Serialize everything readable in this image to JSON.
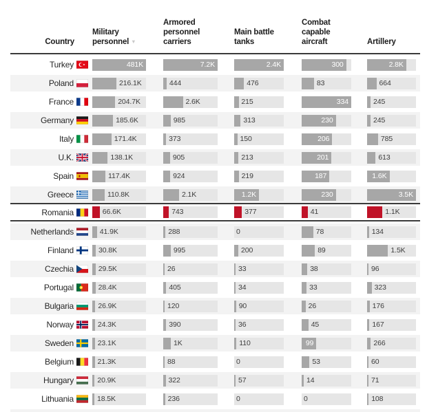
{
  "header": {
    "country_label": "Country",
    "sort_indicator": "▼",
    "columns": [
      {
        "label": "Military\npersonnel",
        "sorted": "desc"
      },
      {
        "label": "Armored\npersonnel\ncarriers"
      },
      {
        "label": "Main battle\ntanks"
      },
      {
        "label": "Combat\ncapable\naircraft"
      },
      {
        "label": "Artillery"
      }
    ]
  },
  "colors": {
    "bar_gray": "#a7a7a7",
    "highlight_red": "#c01328",
    "track": "#e6e6e6",
    "row_stripe": "#f3f3f3",
    "rule": "#3a3a3a"
  },
  "chart_data": {
    "type": "table",
    "title": "",
    "columns": [
      "Military personnel",
      "Armored personnel carriers",
      "Main battle tanks",
      "Combat capable aircraft",
      "Artillery"
    ],
    "column_max": [
      481000,
      7200,
      2400,
      334,
      3500
    ],
    "rows": [
      {
        "country": "Turkey",
        "flag": "tr",
        "highlight": false,
        "values": [
          481000,
          7200,
          2400,
          300,
          2800
        ],
        "labels": [
          "481K",
          "7.2K",
          "2.4K",
          "300",
          "2.8K"
        ]
      },
      {
        "country": "Poland",
        "flag": "pl",
        "highlight": false,
        "values": [
          216100,
          444,
          476,
          83,
          664
        ],
        "labels": [
          "216.1K",
          "444",
          "476",
          "83",
          "664"
        ]
      },
      {
        "country": "France",
        "flag": "fr",
        "highlight": false,
        "values": [
          204700,
          2600,
          215,
          334,
          245
        ],
        "labels": [
          "204.7K",
          "2.6K",
          "215",
          "334",
          "245"
        ]
      },
      {
        "country": "Germany",
        "flag": "de",
        "highlight": false,
        "values": [
          185600,
          985,
          313,
          230,
          245
        ],
        "labels": [
          "185.6K",
          "985",
          "313",
          "230",
          "245"
        ]
      },
      {
        "country": "Italy",
        "flag": "it",
        "highlight": false,
        "values": [
          171400,
          373,
          150,
          206,
          785
        ],
        "labels": [
          "171.4K",
          "373",
          "150",
          "206",
          "785"
        ]
      },
      {
        "country": "U.K.",
        "flag": "uk",
        "highlight": false,
        "values": [
          138100,
          905,
          213,
          201,
          613
        ],
        "labels": [
          "138.1K",
          "905",
          "213",
          "201",
          "613"
        ]
      },
      {
        "country": "Spain",
        "flag": "es",
        "highlight": false,
        "values": [
          117400,
          924,
          219,
          187,
          1600
        ],
        "labels": [
          "117.4K",
          "924",
          "219",
          "187",
          "1.6K"
        ]
      },
      {
        "country": "Greece",
        "flag": "gr",
        "highlight": false,
        "values": [
          110800,
          2100,
          1200,
          230,
          3500
        ],
        "labels": [
          "110.8K",
          "2.1K",
          "1.2K",
          "230",
          "3.5K"
        ]
      },
      {
        "country": "Romania",
        "flag": "ro",
        "highlight": true,
        "values": [
          66600,
          743,
          377,
          41,
          1100
        ],
        "labels": [
          "66.6K",
          "743",
          "377",
          "41",
          "1.1K"
        ]
      },
      {
        "country": "Netherlands",
        "flag": "nl",
        "highlight": false,
        "values": [
          41900,
          288,
          0,
          78,
          134
        ],
        "labels": [
          "41.9K",
          "288",
          "0",
          "78",
          "134"
        ]
      },
      {
        "country": "Finland",
        "flag": "fi",
        "highlight": false,
        "values": [
          30800,
          995,
          200,
          89,
          1500
        ],
        "labels": [
          "30.8K",
          "995",
          "200",
          "89",
          "1.5K"
        ]
      },
      {
        "country": "Czechia",
        "flag": "cz",
        "highlight": false,
        "values": [
          29500,
          26,
          33,
          38,
          96
        ],
        "labels": [
          "29.5K",
          "26",
          "33",
          "38",
          "96"
        ]
      },
      {
        "country": "Portugal",
        "flag": "pt",
        "highlight": false,
        "values": [
          28400,
          405,
          34,
          33,
          323
        ],
        "labels": [
          "28.4K",
          "405",
          "34",
          "33",
          "323"
        ]
      },
      {
        "country": "Bulgaria",
        "flag": "bg",
        "highlight": false,
        "values": [
          26900,
          120,
          90,
          26,
          176
        ],
        "labels": [
          "26.9K",
          "120",
          "90",
          "26",
          "176"
        ]
      },
      {
        "country": "Norway",
        "flag": "no",
        "highlight": false,
        "values": [
          24300,
          390,
          36,
          45,
          167
        ],
        "labels": [
          "24.3K",
          "390",
          "36",
          "45",
          "167"
        ]
      },
      {
        "country": "Sweden",
        "flag": "se",
        "highlight": false,
        "values": [
          23100,
          1000,
          110,
          99,
          266
        ],
        "labels": [
          "23.1K",
          "1K",
          "110",
          "99",
          "266"
        ]
      },
      {
        "country": "Belgium",
        "flag": "be",
        "highlight": false,
        "values": [
          21300,
          88,
          0,
          53,
          60
        ],
        "labels": [
          "21.3K",
          "88",
          "0",
          "53",
          "60"
        ]
      },
      {
        "country": "Hungary",
        "flag": "hu",
        "highlight": false,
        "values": [
          20900,
          322,
          57,
          14,
          71
        ],
        "labels": [
          "20.9K",
          "322",
          "57",
          "14",
          "71"
        ]
      },
      {
        "country": "Lithuania",
        "flag": "lt",
        "highlight": false,
        "values": [
          18500,
          236,
          0,
          0,
          108
        ],
        "labels": [
          "18.5K",
          "236",
          "0",
          "0",
          "108"
        ]
      }
    ]
  }
}
